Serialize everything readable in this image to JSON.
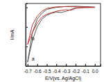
{
  "chart_data": {
    "type": "line",
    "x_label": "E/V(vs. Ag/AgCl)",
    "y_label": "I/mA",
    "xlim": [
      -0.72,
      0.06
    ],
    "xticks": [
      -0.7,
      -0.6,
      -0.5,
      -0.4,
      -0.3,
      -0.2,
      -0.1,
      {
        "value": 0,
        "label": "0.0"
      }
    ],
    "ylim": [
      -0.3,
      0.02
    ],
    "yticks": [
      -0.3,
      -0.2,
      -0.1,
      0
    ],
    "tick_labels": "x",
    "grid": false,
    "series": [
      {
        "name": "a",
        "color": "#555555",
        "x": [
          0.0,
          -0.1,
          -0.2,
          -0.3,
          -0.35,
          -0.4,
          -0.45,
          -0.5,
          -0.55,
          -0.6,
          -0.65,
          -0.7,
          -0.65,
          -0.6,
          -0.55,
          -0.5,
          -0.4,
          -0.3,
          -0.2,
          -0.1,
          0.0
        ],
        "values": [
          0.0,
          0.0,
          -0.002,
          -0.02,
          -0.026,
          -0.024,
          -0.03,
          -0.04,
          -0.06,
          -0.1,
          -0.17,
          -0.28,
          -0.13,
          -0.06,
          -0.03,
          -0.01,
          0.0,
          0.005,
          0.006,
          0.004,
          0.002
        ]
      },
      {
        "name": "b",
        "color": "#c03030",
        "x": [
          0.0,
          -0.1,
          -0.2,
          -0.25,
          -0.3,
          -0.35,
          -0.4,
          -0.5,
          -0.55,
          -0.6,
          -0.65,
          -0.7,
          -0.65,
          -0.6,
          -0.55,
          -0.5,
          -0.4,
          -0.3,
          -0.2,
          -0.1,
          0.0
        ],
        "values": [
          0.0,
          -0.001,
          -0.005,
          -0.015,
          -0.012,
          -0.015,
          -0.02,
          -0.035,
          -0.05,
          -0.08,
          -0.13,
          -0.19,
          -0.09,
          -0.045,
          -0.02,
          -0.005,
          0.003,
          0.004,
          0.003,
          0.002,
          0.0
        ]
      }
    ]
  }
}
